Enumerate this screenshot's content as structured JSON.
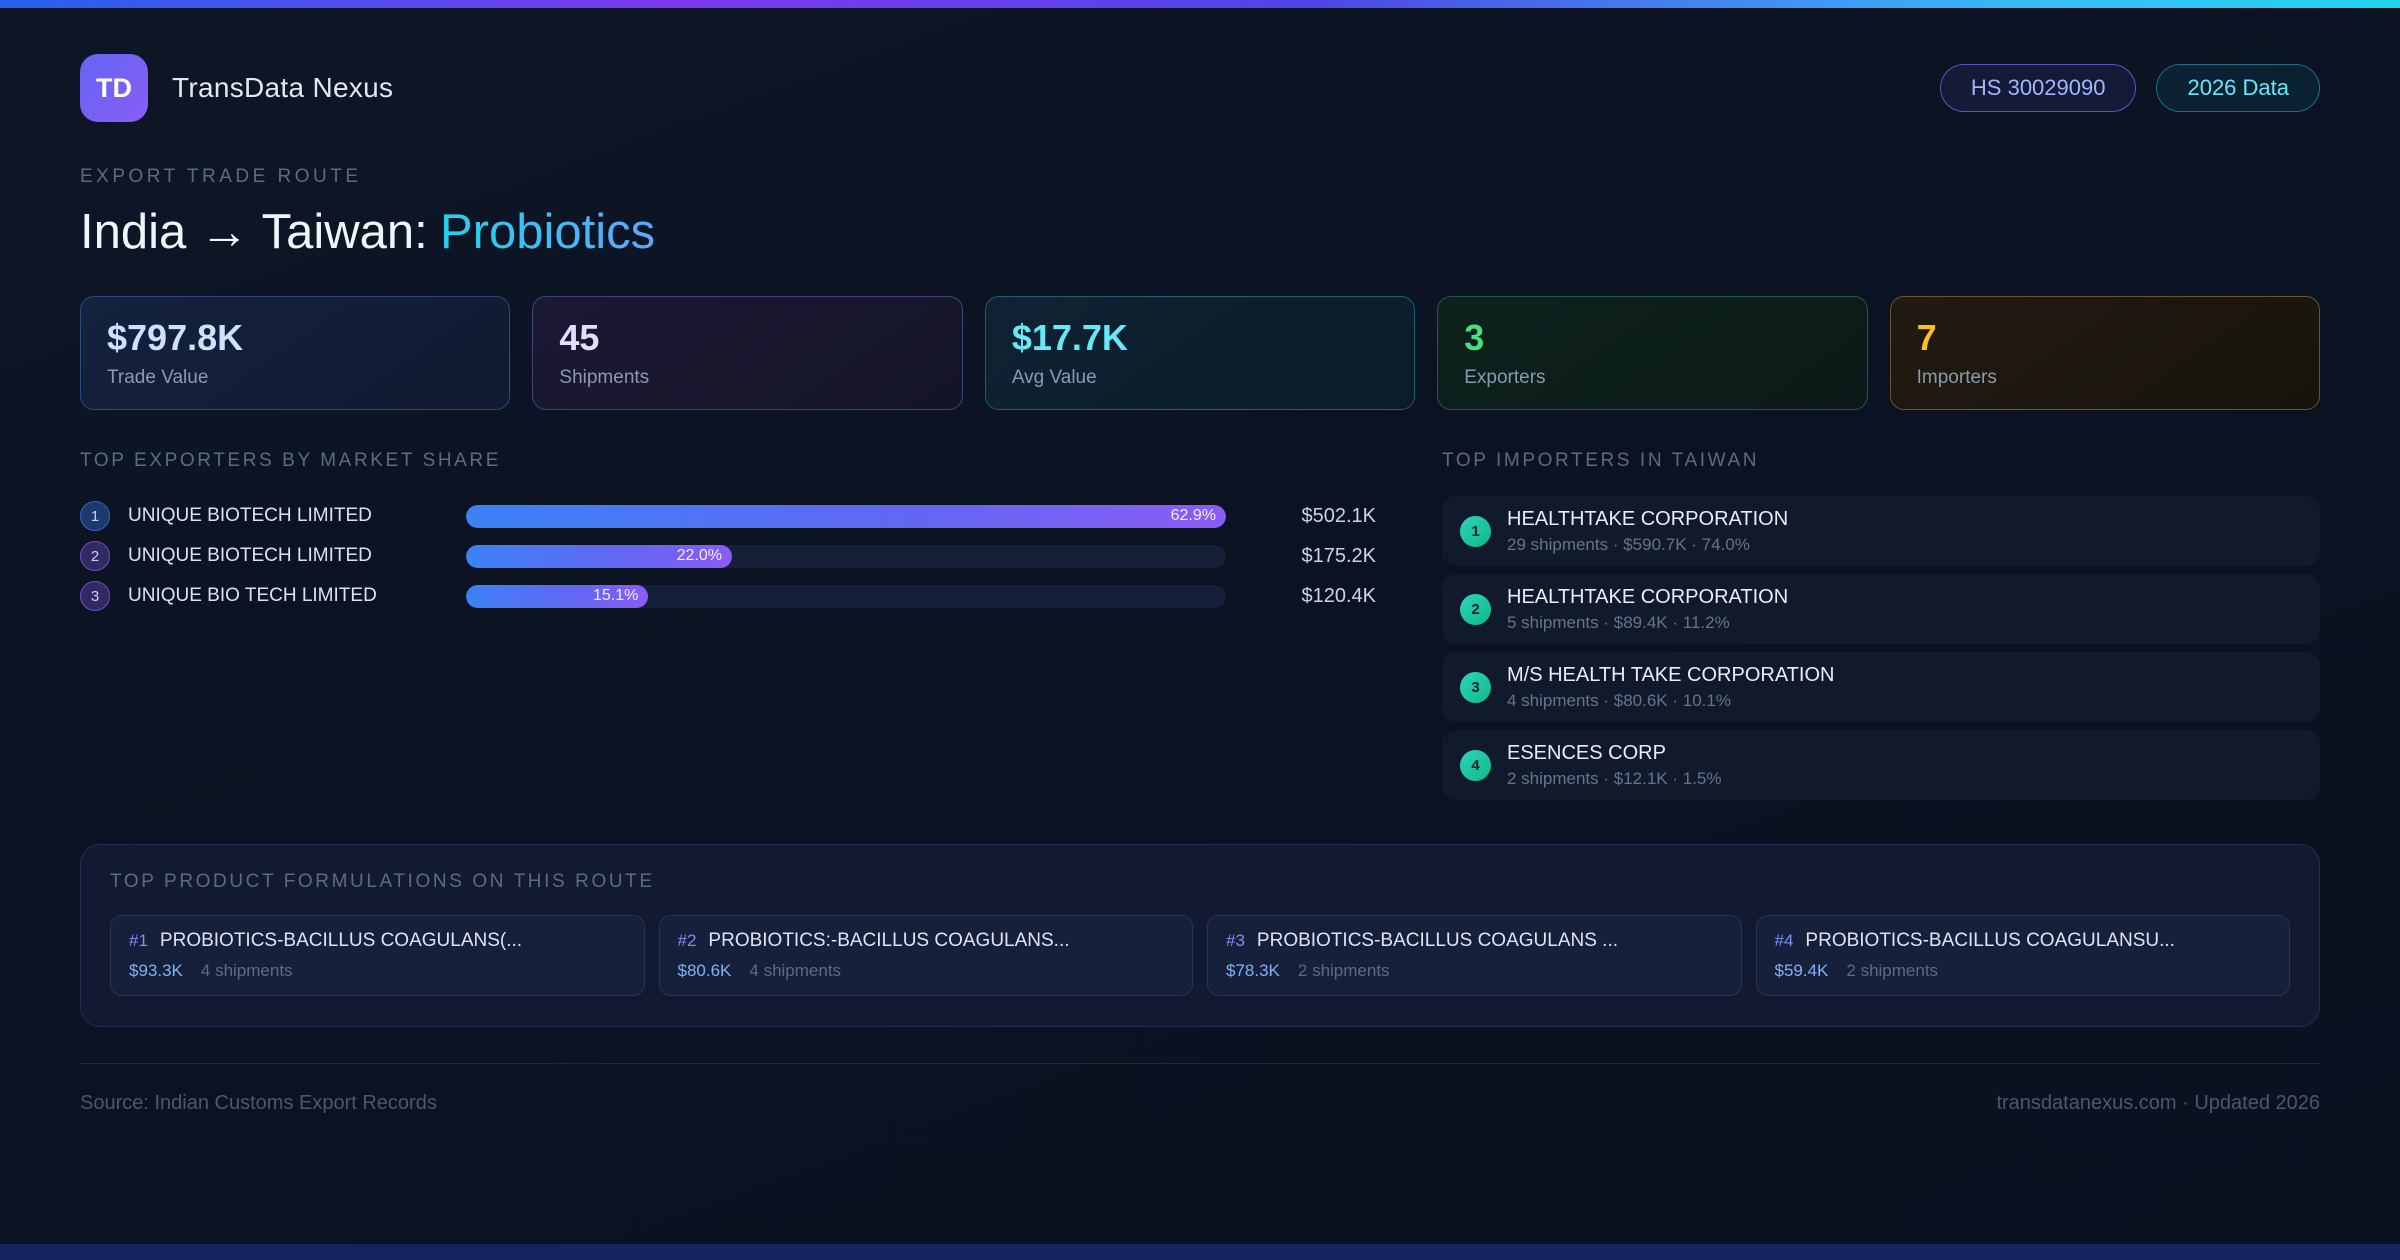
{
  "header": {
    "logo_text": "TD",
    "app_name": "TransData Nexus",
    "hs_badge": "HS 30029090",
    "year_badge": "2026 Data"
  },
  "hero": {
    "eyebrow": "EXPORT TRADE ROUTE",
    "title_main": "India → Taiwan:",
    "title_accent": "Probiotics"
  },
  "stats": [
    {
      "value": "$797.8K",
      "label": "Trade Value"
    },
    {
      "value": "45",
      "label": "Shipments"
    },
    {
      "value": "$17.7K",
      "label": "Avg Value"
    },
    {
      "value": "3",
      "label": "Exporters"
    },
    {
      "value": "7",
      "label": "Importers"
    }
  ],
  "exporters": {
    "title": "TOP EXPORTERS BY MARKET SHARE",
    "rows": [
      {
        "rank": "1",
        "name": "UNIQUE BIOTECH LIMITED",
        "share_label": "62.9%",
        "bar_pct": 100,
        "value": "$502.1K"
      },
      {
        "rank": "2",
        "name": "UNIQUE BIOTECH LIMITED",
        "share_label": "22.0%",
        "bar_pct": 35,
        "value": "$175.2K"
      },
      {
        "rank": "3",
        "name": "UNIQUE BIO TECH LIMITED",
        "share_label": "15.1%",
        "bar_pct": 24,
        "value": "$120.4K"
      }
    ]
  },
  "importers": {
    "title": "TOP IMPORTERS IN TAIWAN",
    "rows": [
      {
        "rank": "1",
        "name": "HEALTHTAKE CORPORATION",
        "meta": "29 shipments · $590.7K · 74.0%"
      },
      {
        "rank": "2",
        "name": "HEALTHTAKE CORPORATION",
        "meta": "5 shipments · $89.4K · 11.2%"
      },
      {
        "rank": "3",
        "name": "M/S HEALTH TAKE CORPORATION",
        "meta": "4 shipments · $80.6K · 10.1%"
      },
      {
        "rank": "4",
        "name": "ESENCES CORP",
        "meta": "2 shipments · $12.1K · 1.5%"
      }
    ]
  },
  "products": {
    "title": "TOP PRODUCT FORMULATIONS ON THIS ROUTE",
    "cards": [
      {
        "rank": "#1",
        "name": "PROBIOTICS-BACILLUS COAGULANS(...",
        "value": "$93.3K",
        "shipments": "4 shipments"
      },
      {
        "rank": "#2",
        "name": "PROBIOTICS:-BACILLUS COAGULANS...",
        "value": "$80.6K",
        "shipments": "4 shipments"
      },
      {
        "rank": "#3",
        "name": "PROBIOTICS-BACILLUS COAGULANS ...",
        "value": "$78.3K",
        "shipments": "2 shipments"
      },
      {
        "rank": "#4",
        "name": "PROBIOTICS-BACILLUS COAGULANSU...",
        "value": "$59.4K",
        "shipments": "2 shipments"
      }
    ]
  },
  "footer": {
    "source": "Source: Indian Customs Export Records",
    "site": "transdatanexus.com · Updated 2026"
  },
  "colors": {
    "top_gradient": [
      "#2563eb",
      "#7c3aed",
      "#4f46e5",
      "#38bdf8",
      "#22d3ee"
    ],
    "background": "#0b1322",
    "accent_cyan": "#22d3ee",
    "accent_blue": "#60a5fa",
    "accent_purple": "#8b5cf6",
    "stat_blue": "#cfe0ff",
    "stat_purple": "#e2ddff",
    "stat_cyan": "#67e8f9",
    "stat_green": "#4ade80",
    "stat_amber": "#fbbf24",
    "importer_badge": "#10b981",
    "bar_gradient": [
      "#3b82f6",
      "#8b5cf6"
    ]
  }
}
